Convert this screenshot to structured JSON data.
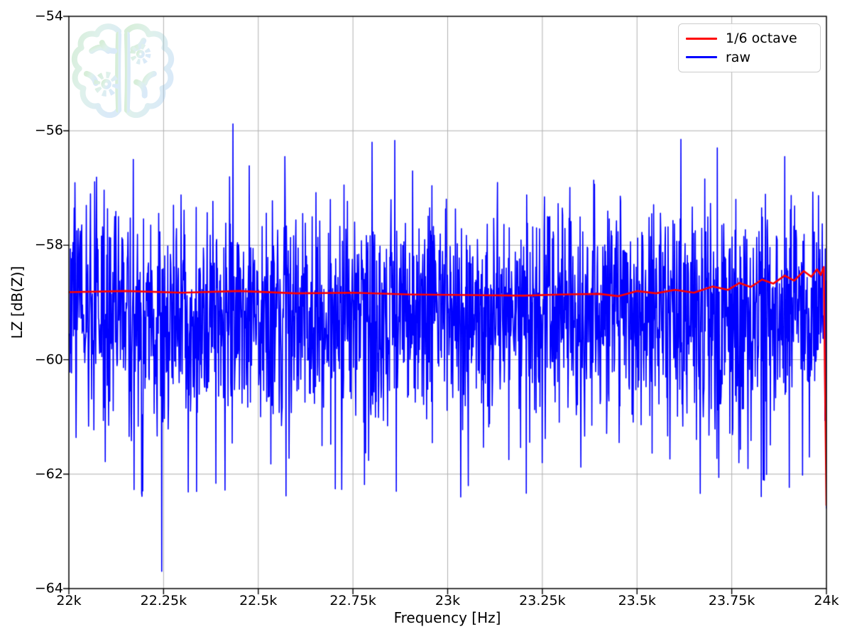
{
  "watermark": {
    "name": "brain-gears-logo",
    "color_left": "#85cb8a",
    "color_mid": "#9fd4c4",
    "color_right": "#8fbfe9",
    "opacity": 0.33
  },
  "chart_data": {
    "type": "line",
    "title": "",
    "xlabel": "Frequency [Hz]",
    "ylabel": "LZ [dB(Z)]",
    "xlim": [
      22000,
      24000
    ],
    "ylim": [
      -64,
      -54
    ],
    "grid": true,
    "grid_color": "#b0b0b0",
    "frame_color": "#000000",
    "background": "#ffffff",
    "xticks": [
      {
        "v": 22000,
        "label": "22k"
      },
      {
        "v": 22250,
        "label": "22.25k"
      },
      {
        "v": 22500,
        "label": "22.5k"
      },
      {
        "v": 22750,
        "label": "22.75k"
      },
      {
        "v": 23000,
        "label": "23k"
      },
      {
        "v": 23250,
        "label": "23.25k"
      },
      {
        "v": 23500,
        "label": "23.5k"
      },
      {
        "v": 23750,
        "label": "23.75k"
      },
      {
        "v": 24000,
        "label": "24k"
      }
    ],
    "yticks": [
      {
        "v": -54,
        "label": "−54"
      },
      {
        "v": -56,
        "label": "−56"
      },
      {
        "v": -58,
        "label": "−58"
      },
      {
        "v": -60,
        "label": "−60"
      },
      {
        "v": -62,
        "label": "−62"
      },
      {
        "v": -64,
        "label": "−64"
      }
    ],
    "legend": {
      "position": "upper right",
      "entries": [
        {
          "label": "1/6 octave",
          "color": "#ff0000"
        },
        {
          "label": "raw",
          "color": "#0000ff"
        }
      ]
    },
    "series": [
      {
        "name": "raw",
        "color": "#0000ff",
        "line_width": 1.6,
        "noise": {
          "seed": 7,
          "n": 2000,
          "mean": -59.15,
          "sigma": 0.95,
          "dip_prob": 0.05,
          "dip_base": 0.3,
          "dip_scale": 1.8,
          "clip_high": -56.25,
          "clip_low": -62.4
        },
        "landmarks": [
          [
            22170,
            -56.5
          ],
          [
            22245,
            -63.7
          ],
          [
            22433,
            -55.88
          ],
          [
            22570,
            -56.45
          ],
          [
            22800,
            -56.2
          ],
          [
            22860,
            -56.17
          ],
          [
            22864,
            -62.3
          ],
          [
            23055,
            -62.2
          ],
          [
            23250,
            -61.8
          ],
          [
            23616,
            -56.15
          ],
          [
            23712,
            -56.3
          ],
          [
            23833,
            -62.1
          ],
          [
            23890,
            -56.45
          ]
        ],
        "end_value": [
          24000,
          -62.6
        ]
      },
      {
        "name": "1/6 octave",
        "color": "#ff0000",
        "line_width": 2.6,
        "points": [
          [
            22000,
            -58.82
          ],
          [
            22150,
            -58.8
          ],
          [
            22300,
            -58.83
          ],
          [
            22450,
            -58.8
          ],
          [
            22600,
            -58.84
          ],
          [
            22750,
            -58.83
          ],
          [
            22900,
            -58.86
          ],
          [
            23050,
            -58.87
          ],
          [
            23200,
            -58.88
          ],
          [
            23300,
            -58.86
          ],
          [
            23400,
            -58.85
          ],
          [
            23450,
            -58.89
          ],
          [
            23500,
            -58.8
          ],
          [
            23550,
            -58.84
          ],
          [
            23600,
            -58.78
          ],
          [
            23650,
            -58.83
          ],
          [
            23700,
            -58.72
          ],
          [
            23740,
            -58.78
          ],
          [
            23770,
            -58.66
          ],
          [
            23800,
            -58.73
          ],
          [
            23830,
            -58.6
          ],
          [
            23860,
            -58.67
          ],
          [
            23890,
            -58.53
          ],
          [
            23915,
            -58.62
          ],
          [
            23940,
            -58.45
          ],
          [
            23960,
            -58.55
          ],
          [
            23975,
            -58.42
          ],
          [
            23985,
            -58.52
          ],
          [
            23993,
            -58.38
          ],
          [
            24000,
            -62.55
          ]
        ]
      }
    ]
  }
}
